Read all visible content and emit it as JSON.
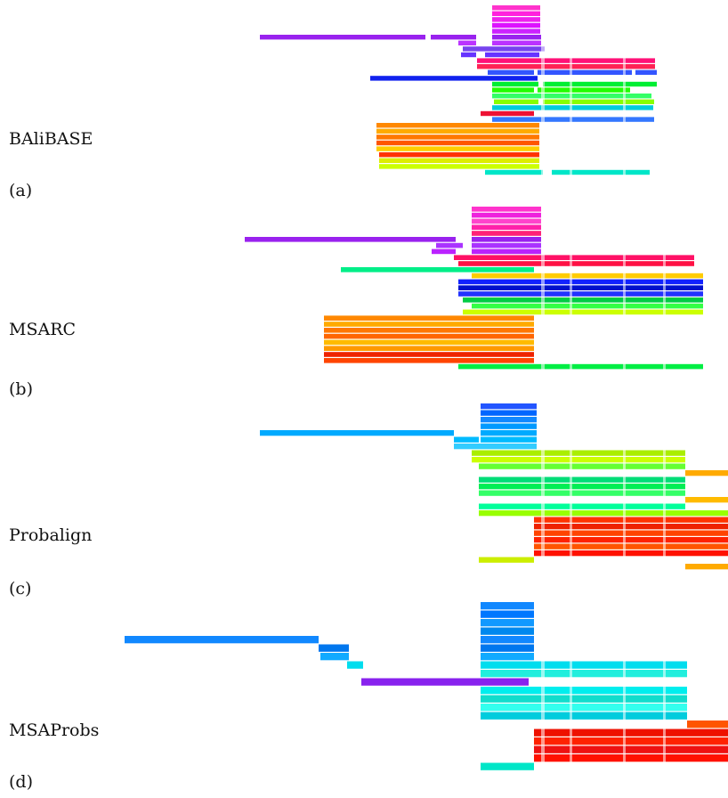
{
  "panels": [
    {
      "name": "BAliBASE",
      "tag": "(a)",
      "rows": [
        {
          "color": "#ff33cc",
          "segs": [
            [
              553,
              607
            ]
          ]
        },
        {
          "color": "#ff22dd",
          "segs": [
            [
              553,
              607
            ]
          ]
        },
        {
          "color": "#ee22ee",
          "segs": [
            [
              553,
              607
            ]
          ]
        },
        {
          "color": "#dd11ff",
          "segs": [
            [
              553,
              607
            ]
          ]
        },
        {
          "color": "#cc22ff",
          "segs": [
            [
              553,
              607
            ]
          ]
        },
        {
          "color": "#9922ee",
          "segs": [
            [
              292,
              478
            ],
            [
              484,
              535
            ],
            [
              553,
              608
            ]
          ]
        },
        {
          "color": "#bb33ff",
          "segs": [
            [
              515,
              535
            ],
            [
              553,
              608
            ]
          ]
        },
        {
          "color": "#7744ee",
          "segs": [
            [
              520,
              612
            ]
          ]
        },
        {
          "color": "#6633ff",
          "segs": [
            [
              518,
              535
            ],
            [
              545,
              606
            ]
          ]
        },
        {
          "color": "#ff1177",
          "segs": [
            [
              536,
              736
            ]
          ]
        },
        {
          "color": "#ff2255",
          "segs": [
            [
              536,
              736
            ]
          ]
        },
        {
          "color": "#3355ff",
          "segs": [
            [
              548,
              600
            ],
            [
              604,
              710
            ],
            [
              714,
              738
            ]
          ]
        },
        {
          "color": "#1122ee",
          "segs": [
            [
              416,
              604
            ]
          ]
        },
        {
          "color": "#00ee33",
          "segs": [
            [
              553,
              605
            ],
            [
              610,
              738
            ]
          ]
        },
        {
          "color": "#22ff00",
          "segs": [
            [
              553,
              600
            ],
            [
              604,
              708
            ]
          ]
        },
        {
          "color": "#33ff66",
          "segs": [
            [
              553,
              732
            ]
          ]
        },
        {
          "color": "#88ff00",
          "segs": [
            [
              555,
              605
            ],
            [
              610,
              735
            ]
          ]
        },
        {
          "color": "#00ccdd",
          "segs": [
            [
              553,
              734
            ]
          ]
        },
        {
          "color": "#ee1133",
          "segs": [
            [
              540,
              600
            ]
          ]
        },
        {
          "color": "#3377ff",
          "segs": [
            [
              553,
              735
            ]
          ]
        },
        {
          "color": "#ff8800",
          "segs": [
            [
              423,
              606
            ]
          ]
        },
        {
          "color": "#ffaa00",
          "segs": [
            [
              423,
              606
            ]
          ]
        },
        {
          "color": "#ff7700",
          "segs": [
            [
              423,
              606
            ]
          ]
        },
        {
          "color": "#ff5500",
          "segs": [
            [
              423,
              606
            ]
          ]
        },
        {
          "color": "#ffcc00",
          "segs": [
            [
              423,
              606
            ]
          ]
        },
        {
          "color": "#ff3300",
          "segs": [
            [
              426,
              606
            ]
          ]
        },
        {
          "color": "#ddee00",
          "segs": [
            [
              426,
              606
            ]
          ]
        },
        {
          "color": "#ccff00",
          "segs": [
            [
              426,
              606
            ]
          ]
        },
        {
          "color": "#00e6c8",
          "segs": [
            [
              545,
              610
            ],
            [
              620,
              730
            ]
          ]
        }
      ]
    },
    {
      "name": "MSARC",
      "tag": "(b)",
      "rows": [
        {
          "color": "#ff33cc",
          "segs": [
            [
              530,
              608
            ]
          ]
        },
        {
          "color": "#ee22dd",
          "segs": [
            [
              530,
              608
            ]
          ]
        },
        {
          "color": "#ff44cc",
          "segs": [
            [
              530,
              608
            ]
          ]
        },
        {
          "color": "#ff22aa",
          "segs": [
            [
              530,
              608
            ]
          ]
        },
        {
          "color": "#ff2277",
          "segs": [
            [
              530,
              608
            ]
          ]
        },
        {
          "color": "#9922ee",
          "segs": [
            [
              275,
              512
            ],
            [
              530,
              608
            ]
          ]
        },
        {
          "color": "#aa33ff",
          "segs": [
            [
              490,
              520
            ],
            [
              530,
              608
            ]
          ]
        },
        {
          "color": "#bb22ff",
          "segs": [
            [
              485,
              512
            ],
            [
              530,
              608
            ]
          ]
        },
        {
          "color": "#ff1166",
          "segs": [
            [
              510,
              780
            ]
          ]
        },
        {
          "color": "#ff1144",
          "segs": [
            [
              515,
              780
            ]
          ]
        },
        {
          "color": "#00ee88",
          "segs": [
            [
              383,
              600
            ]
          ]
        },
        {
          "color": "#ffcc00",
          "segs": [
            [
              530,
              790
            ]
          ]
        },
        {
          "color": "#1122ff",
          "segs": [
            [
              515,
              790
            ]
          ]
        },
        {
          "color": "#0011cc",
          "segs": [
            [
              515,
              790
            ]
          ]
        },
        {
          "color": "#2233ff",
          "segs": [
            [
              515,
              790
            ]
          ]
        },
        {
          "color": "#00cc44",
          "segs": [
            [
              520,
              790
            ]
          ]
        },
        {
          "color": "#33ff44",
          "segs": [
            [
              530,
              790
            ]
          ]
        },
        {
          "color": "#ccff00",
          "segs": [
            [
              520,
              790
            ]
          ]
        },
        {
          "color": "#ff8800",
          "segs": [
            [
              364,
              600
            ]
          ]
        },
        {
          "color": "#ffaa00",
          "segs": [
            [
              364,
              600
            ]
          ]
        },
        {
          "color": "#ff7700",
          "segs": [
            [
              364,
              600
            ]
          ]
        },
        {
          "color": "#ff6600",
          "segs": [
            [
              364,
              600
            ]
          ]
        },
        {
          "color": "#ffbb00",
          "segs": [
            [
              364,
              600
            ]
          ]
        },
        {
          "color": "#ff9900",
          "segs": [
            [
              364,
              600
            ]
          ]
        },
        {
          "color": "#ee2200",
          "segs": [
            [
              364,
              600
            ]
          ]
        },
        {
          "color": "#ff4400",
          "segs": [
            [
              364,
              600
            ]
          ]
        },
        {
          "color": "#00ee44",
          "segs": [
            [
              515,
              790
            ]
          ]
        }
      ]
    },
    {
      "name": "Probalign",
      "tag": "(c)",
      "rows": [
        {
          "color": "#2255ff",
          "segs": [
            [
              540,
              603
            ]
          ]
        },
        {
          "color": "#0066ff",
          "segs": [
            [
              540,
              603
            ]
          ]
        },
        {
          "color": "#1188ff",
          "segs": [
            [
              540,
              603
            ]
          ]
        },
        {
          "color": "#0099ff",
          "segs": [
            [
              540,
              603
            ]
          ]
        },
        {
          "color": "#00aaff",
          "segs": [
            [
              292,
              510
            ],
            [
              540,
              603
            ]
          ]
        },
        {
          "color": "#00bbff",
          "segs": [
            [
              510,
              538
            ],
            [
              540,
              603
            ]
          ]
        },
        {
          "color": "#33ccff",
          "segs": [
            [
              510,
              540
            ],
            [
              540,
              603
            ]
          ]
        },
        {
          "color": "#aaee00",
          "segs": [
            [
              530,
              770
            ]
          ]
        },
        {
          "color": "#ccff00",
          "segs": [
            [
              530,
              770
            ]
          ]
        },
        {
          "color": "#66ff33",
          "segs": [
            [
              538,
              770
            ]
          ]
        },
        {
          "color": "#ffaa00",
          "segs": [
            [
              770,
              818
            ]
          ]
        },
        {
          "color": "#00dd77",
          "segs": [
            [
              538,
              770
            ]
          ]
        },
        {
          "color": "#00ee55",
          "segs": [
            [
              538,
              770
            ]
          ]
        },
        {
          "color": "#33ff66",
          "segs": [
            [
              538,
              770
            ]
          ]
        },
        {
          "color": "#ffbb00",
          "segs": [
            [
              770,
              818
            ]
          ]
        },
        {
          "color": "#00ff99",
          "segs": [
            [
              538,
              770
            ]
          ]
        },
        {
          "color": "#99ff00",
          "segs": [
            [
              538,
              818
            ]
          ]
        },
        {
          "color": "#ff3300",
          "segs": [
            [
              600,
              818
            ]
          ]
        },
        {
          "color": "#ee2200",
          "segs": [
            [
              600,
              818
            ]
          ]
        },
        {
          "color": "#ff4400",
          "segs": [
            [
              600,
              818
            ]
          ]
        },
        {
          "color": "#ff2200",
          "segs": [
            [
              600,
              818
            ]
          ]
        },
        {
          "color": "#ff5500",
          "segs": [
            [
              600,
              818
            ]
          ]
        },
        {
          "color": "#ff1100",
          "segs": [
            [
              600,
              818
            ]
          ]
        },
        {
          "color": "#ccee00",
          "segs": [
            [
              538,
              600
            ]
          ]
        },
        {
          "color": "#ffaa00",
          "segs": [
            [
              770,
              818
            ]
          ]
        }
      ]
    },
    {
      "name": "MSAProbs",
      "tag": "(d)",
      "rows": [
        {
          "color": "#1188ff",
          "segs": [
            [
              540,
              600
            ]
          ]
        },
        {
          "color": "#0077ff",
          "segs": [
            [
              540,
              600
            ]
          ]
        },
        {
          "color": "#1199ff",
          "segs": [
            [
              540,
              600
            ]
          ]
        },
        {
          "color": "#0088ee",
          "segs": [
            [
              540,
              600
            ]
          ]
        },
        {
          "color": "#1188ff",
          "segs": [
            [
              140,
              358
            ],
            [
              540,
              600
            ]
          ]
        },
        {
          "color": "#0077ee",
          "segs": [
            [
              358,
              392
            ],
            [
              540,
              600
            ]
          ]
        },
        {
          "color": "#11aaff",
          "segs": [
            [
              360,
              392
            ],
            [
              540,
              600
            ]
          ]
        },
        {
          "color": "#00ddee",
          "segs": [
            [
              390,
              408
            ],
            [
              540,
              772
            ]
          ]
        },
        {
          "color": "#22eedd",
          "segs": [
            [
              540,
              772
            ]
          ]
        },
        {
          "color": "#8822ee",
          "segs": [
            [
              406,
              594
            ]
          ]
        },
        {
          "color": "#00eeee",
          "segs": [
            [
              540,
              772
            ]
          ]
        },
        {
          "color": "#11ddcc",
          "segs": [
            [
              540,
              772
            ]
          ]
        },
        {
          "color": "#33ffee",
          "segs": [
            [
              540,
              772
            ]
          ]
        },
        {
          "color": "#00ccdd",
          "segs": [
            [
              540,
              772
            ]
          ]
        },
        {
          "color": "#ff5500",
          "segs": [
            [
              772,
              818
            ]
          ]
        },
        {
          "color": "#ee1100",
          "segs": [
            [
              600,
              818
            ]
          ]
        },
        {
          "color": "#ff2200",
          "segs": [
            [
              600,
              818
            ]
          ]
        },
        {
          "color": "#ee1111",
          "segs": [
            [
              600,
              818
            ]
          ]
        },
        {
          "color": "#ff1100",
          "segs": [
            [
              600,
              818
            ]
          ]
        },
        {
          "color": "#00e6c8",
          "segs": [
            [
              540,
              600
            ]
          ]
        }
      ]
    }
  ]
}
